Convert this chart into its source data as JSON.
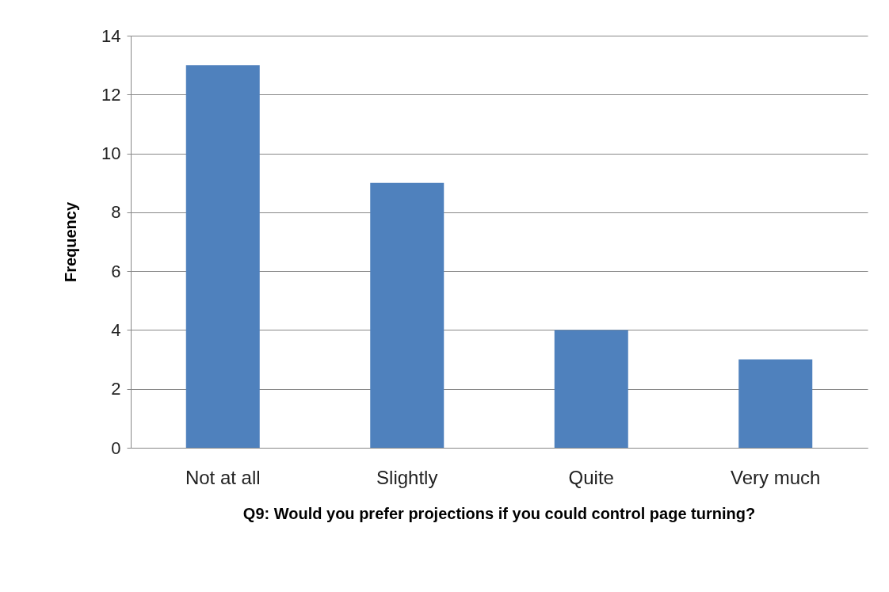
{
  "chart_data": {
    "type": "bar",
    "categories": [
      "Not at all",
      "Slightly",
      "Quite",
      "Very much"
    ],
    "values": [
      13,
      9,
      4,
      3
    ],
    "color": "#4f81bd",
    "ylabel": "Frequency",
    "xlabel": "Q9: Would you prefer projections if you could control page turning?",
    "ylim": [
      0,
      14
    ],
    "yticks": [
      0,
      2,
      4,
      6,
      8,
      10,
      12,
      14
    ],
    "grid": "y"
  }
}
